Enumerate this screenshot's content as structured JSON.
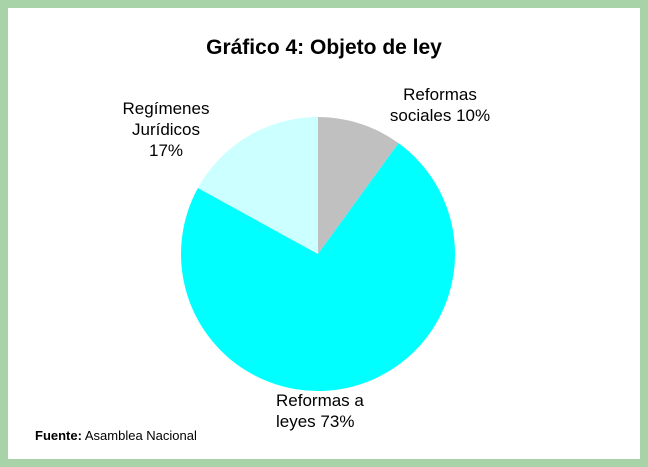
{
  "chart_data": {
    "type": "pie",
    "title": "Gráfico 4: Objeto de ley",
    "categories": [
      "Reformas sociales",
      "Reformas a leyes",
      "Regímenes Jurídicos"
    ],
    "values": [
      10,
      73,
      17
    ],
    "value_labels": [
      "10%",
      "73%",
      "17%"
    ],
    "colors": [
      "#c0c0c0",
      "#00ffff",
      "#ccffff"
    ],
    "source": {
      "label": "Fuente:",
      "text": "Asamblea Nacional"
    }
  }
}
